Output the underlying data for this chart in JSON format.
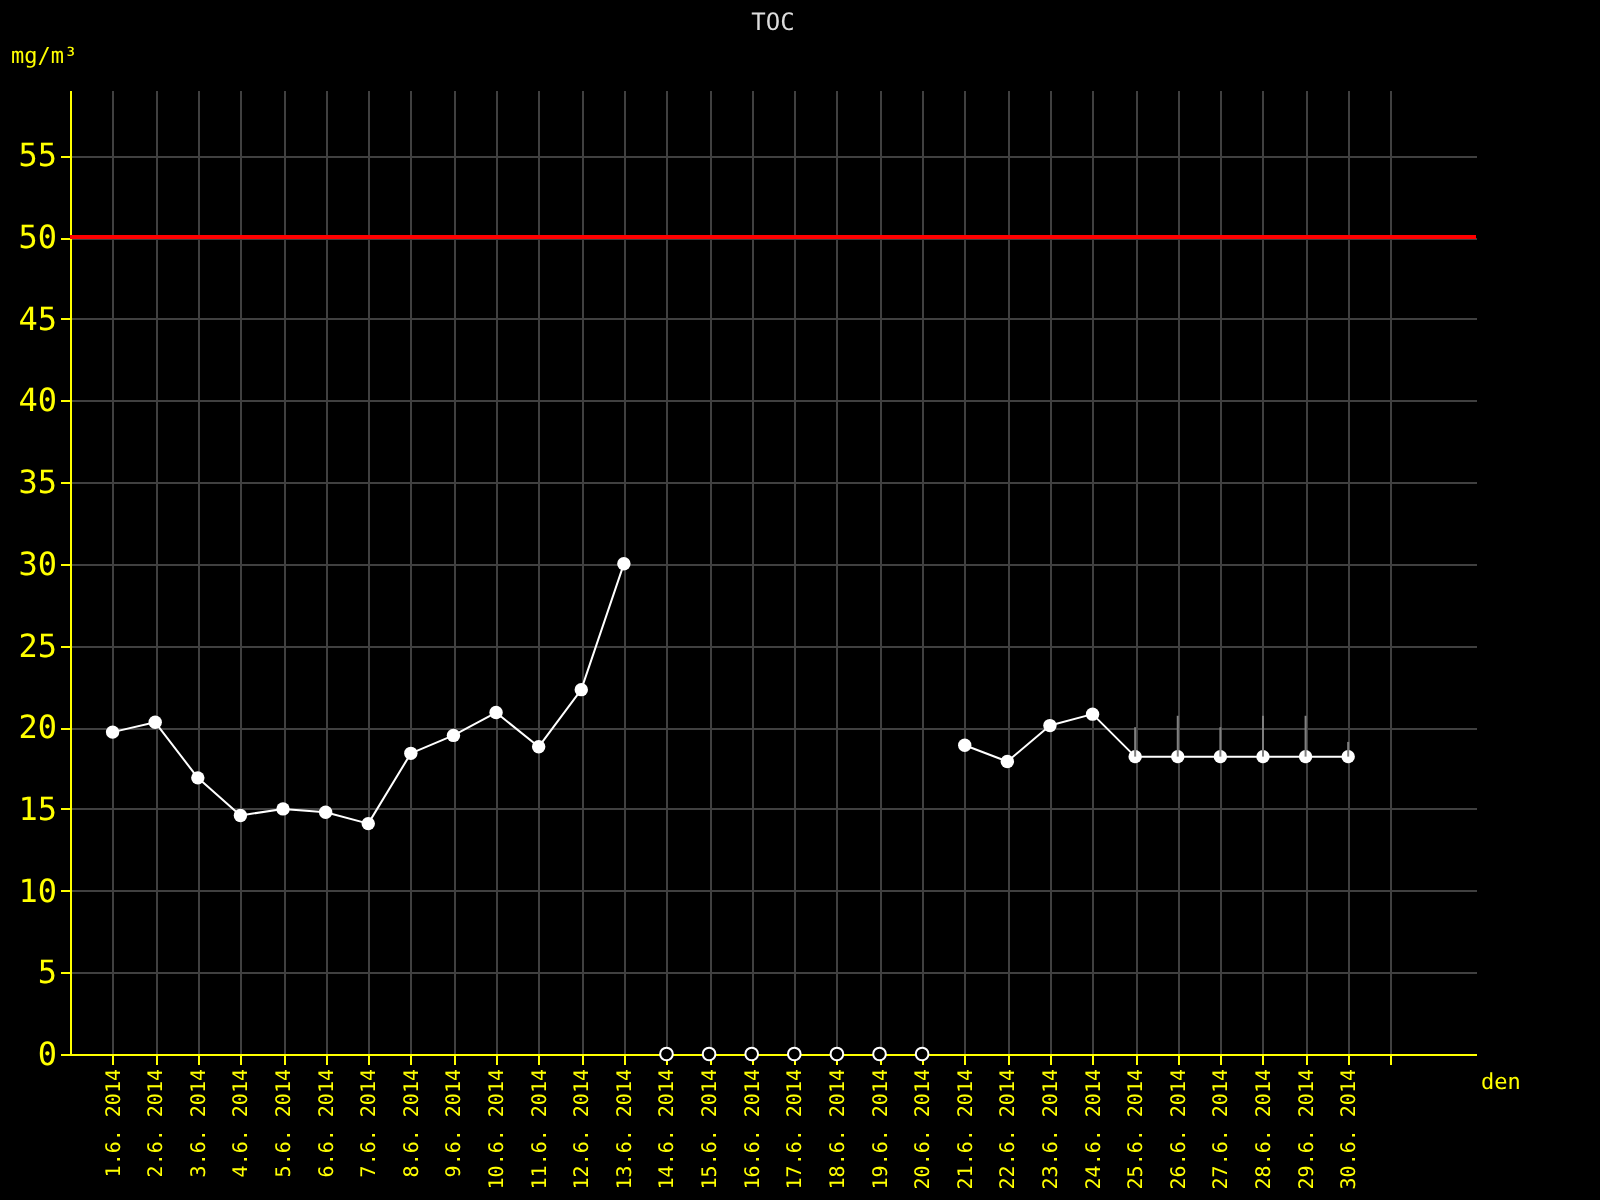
{
  "chart_data": {
    "type": "line",
    "title": "TOC",
    "xlabel": "den",
    "ylabel": "mg/m³",
    "xlim": [
      "2014-05-31",
      "2014-07-03"
    ],
    "xticks": [
      {
        "value": "2014-06-01",
        "label": "1.6. 2014"
      },
      {
        "value": "2014-06-02",
        "label": "2.6. 2014"
      },
      {
        "value": "2014-06-03",
        "label": "3.6. 2014"
      },
      {
        "value": "2014-06-04",
        "label": "4.6. 2014"
      },
      {
        "value": "2014-06-05",
        "label": "5.6. 2014"
      },
      {
        "value": "2014-06-06",
        "label": "6.6. 2014"
      },
      {
        "value": "2014-06-07",
        "label": "7.6. 2014"
      },
      {
        "value": "2014-06-08",
        "label": "8.6. 2014"
      },
      {
        "value": "2014-06-09",
        "label": "9.6. 2014"
      },
      {
        "value": "2014-06-10",
        "label": "10.6. 2014"
      },
      {
        "value": "2014-06-11",
        "label": "11.6. 2014"
      },
      {
        "value": "2014-06-12",
        "label": "12.6. 2014"
      },
      {
        "value": "2014-06-13",
        "label": "13.6. 2014"
      },
      {
        "value": "2014-06-14",
        "label": "14.6. 2014"
      },
      {
        "value": "2014-06-15",
        "label": "15.6. 2014"
      },
      {
        "value": "2014-06-16",
        "label": "16.6. 2014"
      },
      {
        "value": "2014-06-17",
        "label": "17.6. 2014"
      },
      {
        "value": "2014-06-18",
        "label": "18.6. 2014"
      },
      {
        "value": "2014-06-19",
        "label": "19.6. 2014"
      },
      {
        "value": "2014-06-20",
        "label": "20.6. 2014"
      },
      {
        "value": "2014-06-21",
        "label": "21.6. 2014"
      },
      {
        "value": "2014-06-22",
        "label": "22.6. 2014"
      },
      {
        "value": "2014-06-23",
        "label": "23.6. 2014"
      },
      {
        "value": "2014-06-24",
        "label": "24.6. 2014"
      },
      {
        "value": "2014-06-25",
        "label": "25.6. 2014"
      },
      {
        "value": "2014-06-26",
        "label": "26.6. 2014"
      },
      {
        "value": "2014-06-27",
        "label": "27.6. 2014"
      },
      {
        "value": "2014-06-28",
        "label": "28.6. 2014"
      },
      {
        "value": "2014-06-29",
        "label": "29.6. 2014"
      },
      {
        "value": "2014-06-30",
        "label": "30.6. 2014"
      },
      {
        "value": "2014-07-01",
        "label": null
      }
    ],
    "ylim": [
      0,
      59
    ],
    "yticks": [
      0,
      5,
      10,
      15,
      20,
      25,
      30,
      35,
      40,
      45,
      50,
      55
    ],
    "grid": true,
    "ref_lines": [
      {
        "axis": "y",
        "value": 50,
        "color": "#ff0000"
      }
    ],
    "series": [
      {
        "color": "#ffffff",
        "marker": "circle",
        "x": [
          "2014-06-01",
          "2014-06-02",
          "2014-06-03",
          "2014-06-04",
          "2014-06-05",
          "2014-06-06",
          "2014-06-07",
          "2014-06-08",
          "2014-06-09",
          "2014-06-10",
          "2014-06-11",
          "2014-06-12",
          "2014-06-13",
          "2014-06-14",
          "2014-06-15",
          "2014-06-16",
          "2014-06-17",
          "2014-06-18",
          "2014-06-19",
          "2014-06-20",
          "2014-06-21",
          "2014-06-22",
          "2014-06-23",
          "2014-06-24",
          "2014-06-25",
          "2014-06-26",
          "2014-06-27",
          "2014-06-28",
          "2014-06-29",
          "2014-06-30"
        ],
        "values": [
          19.7,
          20.3,
          16.9,
          14.6,
          15.0,
          14.8,
          14.1,
          18.4,
          19.5,
          20.9,
          18.8,
          22.3,
          30.0,
          null,
          null,
          null,
          null,
          null,
          null,
          null,
          18.9,
          17.9,
          20.1,
          20.8,
          18.2,
          18.2,
          18.2,
          18.2,
          18.2,
          18.2
        ],
        "errors": [
          null,
          null,
          null,
          null,
          null,
          null,
          null,
          null,
          null,
          null,
          null,
          null,
          null,
          null,
          null,
          null,
          null,
          null,
          null,
          null,
          null,
          null,
          null,
          null,
          [
            18.2,
            20.0
          ],
          [
            18.2,
            20.7
          ],
          [
            18.2,
            20.0
          ],
          [
            18.2,
            20.7
          ],
          [
            18.2,
            20.7
          ],
          [
            18.2,
            19.1
          ]
        ]
      },
      {
        "type": "scatter",
        "color": "#ffffff",
        "marker": "circle",
        "x": [
          "2014-06-14",
          "2014-06-15",
          "2014-06-16",
          "2014-06-17",
          "2014-06-18",
          "2014-06-19",
          "2014-06-20"
        ],
        "values": [
          0,
          0,
          0,
          0,
          0,
          0,
          0
        ]
      }
    ]
  }
}
